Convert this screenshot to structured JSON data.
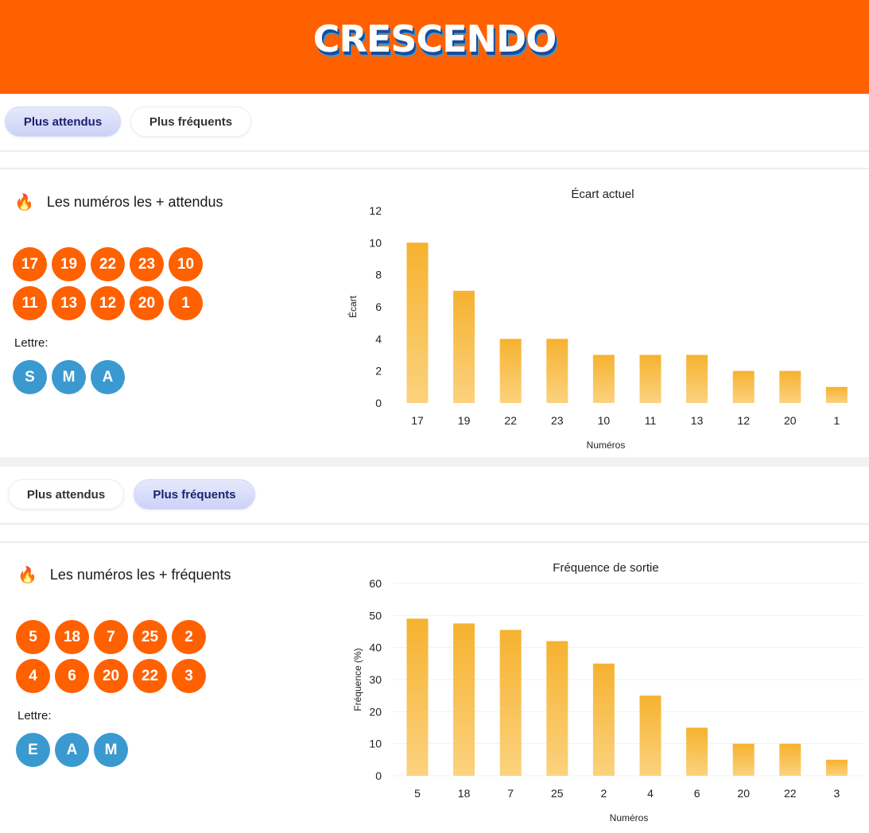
{
  "brand": {
    "name": "CRESCENDO",
    "color": "#ff6000"
  },
  "sections": [
    {
      "tabs": [
        {
          "label": "Plus attendus",
          "active": true
        },
        {
          "label": "Plus fréquents",
          "active": false
        }
      ],
      "title": "Les numéros les + attendus",
      "icon": "flame-icon",
      "numbers": [
        "17",
        "19",
        "22",
        "23",
        "10",
        "11",
        "13",
        "12",
        "20",
        "1"
      ],
      "letter_label": "Lettre:",
      "letters": [
        "S",
        "M",
        "A"
      ]
    },
    {
      "tabs": [
        {
          "label": "Plus attendus",
          "active": false
        },
        {
          "label": "Plus fréquents",
          "active": true
        }
      ],
      "title": "Les numéros les + fréquents",
      "icon": "flame-icon",
      "numbers": [
        "5",
        "18",
        "7",
        "25",
        "2",
        "4",
        "6",
        "20",
        "22",
        "3"
      ],
      "letter_label": "Lettre:",
      "letters": [
        "E",
        "A",
        "M"
      ]
    }
  ],
  "chart_data": [
    {
      "type": "bar",
      "title": "Écart actuel",
      "xlabel": "Numéros",
      "ylabel": "Écart",
      "categories": [
        "17",
        "19",
        "22",
        "23",
        "10",
        "11",
        "13",
        "12",
        "20",
        "1"
      ],
      "values": [
        10,
        7,
        4,
        4,
        3,
        3,
        3,
        2,
        2,
        1
      ],
      "ylim": [
        0,
        12
      ],
      "yticks": [
        0,
        2,
        4,
        6,
        8,
        10,
        12
      ],
      "grid": false,
      "color": "#f7b733"
    },
    {
      "type": "bar",
      "title": "Fréquence de sortie",
      "xlabel": "Numéros",
      "ylabel": "Fréquence (%)",
      "categories": [
        "5",
        "18",
        "7",
        "25",
        "2",
        "4",
        "6",
        "20",
        "22",
        "3"
      ],
      "values": [
        49,
        47.5,
        45.5,
        42,
        35,
        25,
        15,
        10,
        10,
        5
      ],
      "ylim": [
        0,
        60
      ],
      "yticks": [
        0,
        10,
        20,
        30,
        40,
        50,
        60
      ],
      "grid": true,
      "color": "#f7b733"
    }
  ]
}
